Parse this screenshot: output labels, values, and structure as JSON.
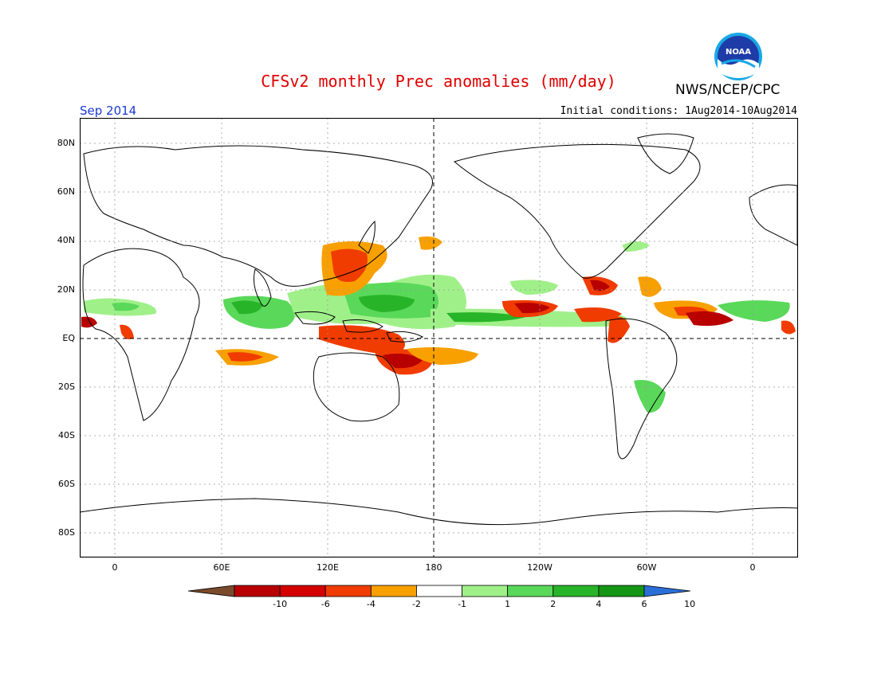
{
  "header": {
    "title": "CFSv2 monthly Prec anomalies (mm/day)",
    "org": "NWS/NCEP/CPC",
    "month": "Sep 2014",
    "initial_conditions": "Initial conditions: 1Aug2014-10Aug2014",
    "logo_text": "NOAA"
  },
  "map": {
    "lon_labels": [
      "0",
      "60E",
      "120E",
      "180",
      "120W",
      "60W",
      "0"
    ],
    "lat_labels": [
      "80N",
      "60N",
      "40N",
      "20N",
      "EQ",
      "20S",
      "40S",
      "60S",
      "80S"
    ]
  },
  "colorbar": {
    "labels": [
      "-10",
      "-6",
      "-4",
      "-2",
      "-1",
      "1",
      "2",
      "4",
      "6",
      "10"
    ],
    "colors": [
      "#7a4a2a",
      "#b80000",
      "#d40000",
      "#f03c00",
      "#f8a000",
      "#ffffff",
      "#a0f08a",
      "#5ad85a",
      "#28b428",
      "#149614",
      "#2a6ed8"
    ]
  }
}
